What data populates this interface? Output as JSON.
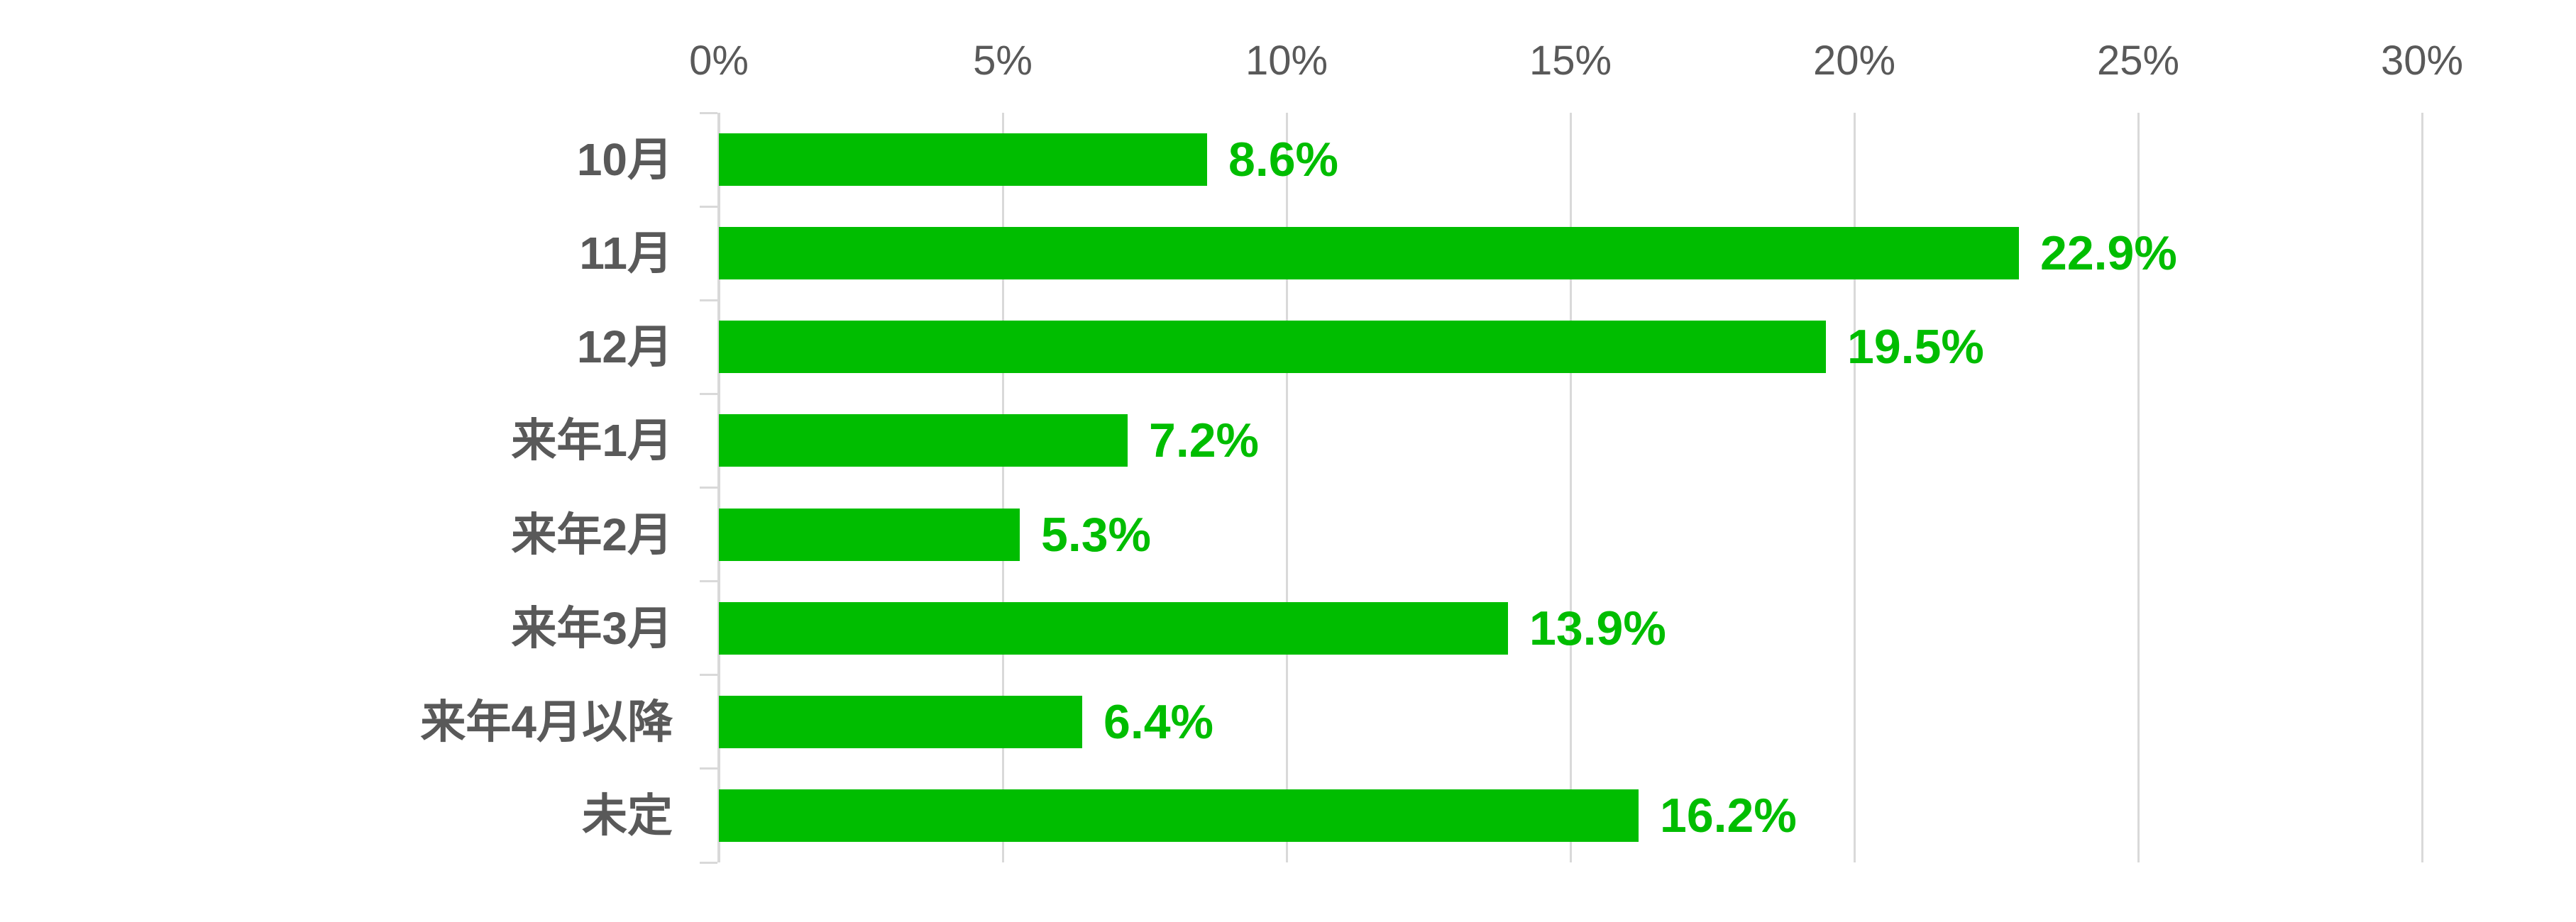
{
  "chart_data": {
    "type": "bar",
    "orientation": "horizontal",
    "title": "",
    "xlabel": "",
    "ylabel": "",
    "xlim": [
      0,
      30
    ],
    "grid": true,
    "legend": false,
    "categories": [
      "10月",
      "11月",
      "12月",
      "来年1月",
      "来年2月",
      "来年3月",
      "来年4月以降",
      "未定"
    ],
    "values": [
      8.6,
      22.9,
      19.5,
      7.2,
      5.3,
      13.9,
      6.4,
      16.2
    ],
    "value_labels": [
      "8.6%",
      "22.9%",
      "19.5%",
      "7.2%",
      "5.3%",
      "13.9%",
      "6.4%",
      "16.2%"
    ],
    "x_tick_values": [
      0,
      5,
      10,
      15,
      20,
      25,
      30
    ],
    "x_tick_labels": [
      "0%",
      "5%",
      "10%",
      "15%",
      "20%",
      "25%",
      "30%"
    ]
  },
  "colors": {
    "bar_fill": "#00bd00",
    "value_label_text": "#00bd00",
    "category_text": "#595959",
    "axis_tick_text": "#595959",
    "gridline": "#d9d9d9",
    "axis_line": "#d9d9d9",
    "background": "#ffffff"
  }
}
